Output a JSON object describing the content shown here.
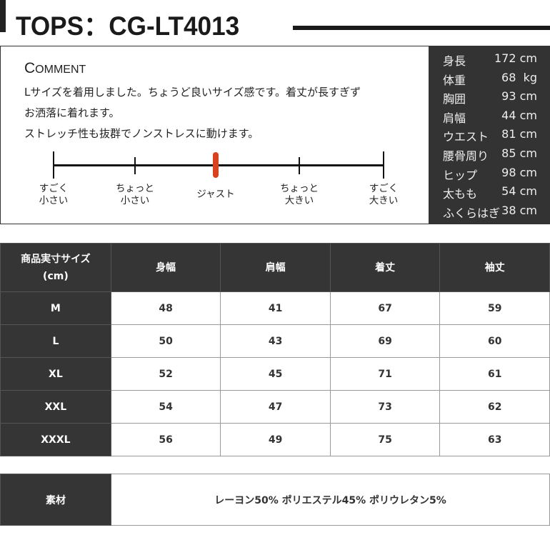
{
  "title": "TOPS：CG-LT4013",
  "comment": {
    "heading_first": "C",
    "heading_rest": "OMMENT",
    "lines": [
      "Lサイズを着用しました。ちょうど良いサイズ感です。着丈が長すぎず",
      "お洒落に着れます。",
      "ストレッチ性も抜群でノンストレスに動けます。"
    ]
  },
  "fit_scale": {
    "labels": [
      "すごく\n小さい",
      "ちょっと\n小さい",
      "ジャスト",
      "ちょっと\n大きい",
      "すごく\n大きい"
    ],
    "selected_index": 2,
    "marker_color": "#d9421e"
  },
  "model": [
    {
      "k": "身長",
      "v": "172 cm"
    },
    {
      "k": "体重",
      "v": "68  kg"
    },
    {
      "k": "胸囲",
      "v": "93 cm"
    },
    {
      "k": "肩幅",
      "v": "44 cm"
    },
    {
      "k": "ウエスト",
      "v": "81 cm"
    },
    {
      "k": "腰骨周り",
      "v": "85 cm"
    },
    {
      "k": "ヒップ",
      "v": "98 cm"
    },
    {
      "k": "太もも",
      "v": "54 cm"
    },
    {
      "k": "ふくらはぎ",
      "v": "38 cm"
    }
  ],
  "size_table": {
    "headers": [
      "商品実寸サイズ\n(cm)",
      "身幅",
      "肩幅",
      "着丈",
      "袖丈"
    ],
    "rows": [
      [
        "M",
        "48",
        "41",
        "67",
        "59"
      ],
      [
        "L",
        "50",
        "43",
        "69",
        "60"
      ],
      [
        "XL",
        "52",
        "45",
        "71",
        "61"
      ],
      [
        "XXL",
        "54",
        "47",
        "73",
        "62"
      ],
      [
        "XXXL",
        "56",
        "49",
        "75",
        "63"
      ]
    ]
  },
  "material": {
    "label": "素材",
    "value": "レーヨン50% ポリエステル45% ポリウレタン5%"
  }
}
